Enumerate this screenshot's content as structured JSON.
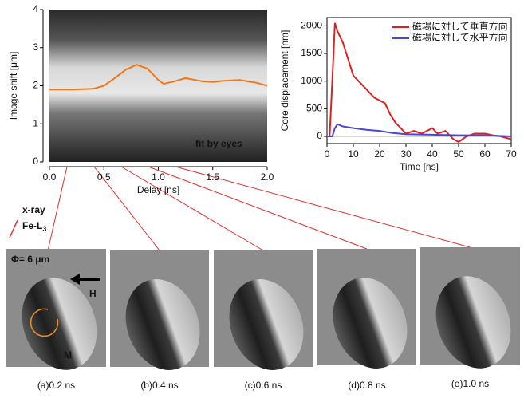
{
  "chart_data": [
    {
      "type": "line",
      "xlabel": "Delay [ns]",
      "ylabel": "Image shift [μm]",
      "annotation": "fit by eyes",
      "xlim": [
        0,
        2
      ],
      "ylim": [
        0,
        4
      ],
      "xticks": [
        {
          "value": 0,
          "label": "0.0"
        },
        {
          "value": 0.5,
          "label": "0.5"
        },
        {
          "value": 1,
          "label": "1.0"
        },
        {
          "value": 1.5,
          "label": "1.5"
        },
        {
          "value": 2,
          "label": "2.0"
        }
      ],
      "yticks": [
        0,
        1,
        2,
        3,
        4
      ],
      "series": [
        {
          "color": "#f07818",
          "x": [
            0,
            0.2,
            0.4,
            0.5,
            0.6,
            0.7,
            0.8,
            0.9,
            1.0,
            1.05,
            1.15,
            1.25,
            1.4,
            1.5,
            1.6,
            1.75,
            1.9,
            2.0
          ],
          "values": [
            1.9,
            1.9,
            1.92,
            2.0,
            2.2,
            2.42,
            2.55,
            2.45,
            2.15,
            2.05,
            2.12,
            2.2,
            2.12,
            2.1,
            2.13,
            2.15,
            2.08,
            2.0
          ]
        }
      ]
    },
    {
      "type": "line",
      "xlabel": "Time [ns]",
      "ylabel": "Core displacement [nm]",
      "xlim": [
        0,
        70
      ],
      "ylim": [
        -130,
        2150
      ],
      "xticks": [
        0,
        10,
        20,
        30,
        40,
        50,
        60,
        70
      ],
      "yticks": [
        0,
        500,
        1000,
        1500,
        2000
      ],
      "series": [
        {
          "name": "磁場に対して垂直方向",
          "color": "#e02020",
          "x": [
            0,
            1,
            2,
            3,
            4,
            5,
            6,
            8,
            10,
            12,
            14,
            16,
            18,
            20,
            22,
            24,
            26,
            28,
            30,
            33,
            36,
            40,
            42,
            45,
            48,
            50,
            53,
            56,
            60,
            63,
            66,
            70
          ],
          "values": [
            0,
            0,
            1000,
            2050,
            1900,
            1800,
            1700,
            1400,
            1100,
            1000,
            900,
            800,
            700,
            650,
            600,
            400,
            250,
            150,
            50,
            100,
            50,
            150,
            50,
            100,
            -50,
            -100,
            0,
            50,
            50,
            20,
            0,
            -50
          ]
        },
        {
          "name": "磁場に対して水平方向",
          "color": "#4848d0",
          "x": [
            0,
            2,
            3,
            4,
            6,
            10,
            15,
            20,
            25,
            30,
            40,
            50,
            60,
            70
          ],
          "values": [
            0,
            0,
            150,
            220,
            180,
            150,
            120,
            100,
            60,
            40,
            30,
            20,
            20,
            0
          ]
        }
      ]
    }
  ],
  "panels": [
    "(a)0.2 ns",
    "(b)0.4 ns",
    "(c)0.6 ns",
    "(d)0.8 ns",
    "(e)1.0 ns"
  ],
  "annotations": {
    "xray": "x-ray",
    "edge": "Fe-L",
    "edge_sub": "3",
    "diameter": "Φ= 6 μm",
    "field": "H",
    "magnetization": "M"
  }
}
